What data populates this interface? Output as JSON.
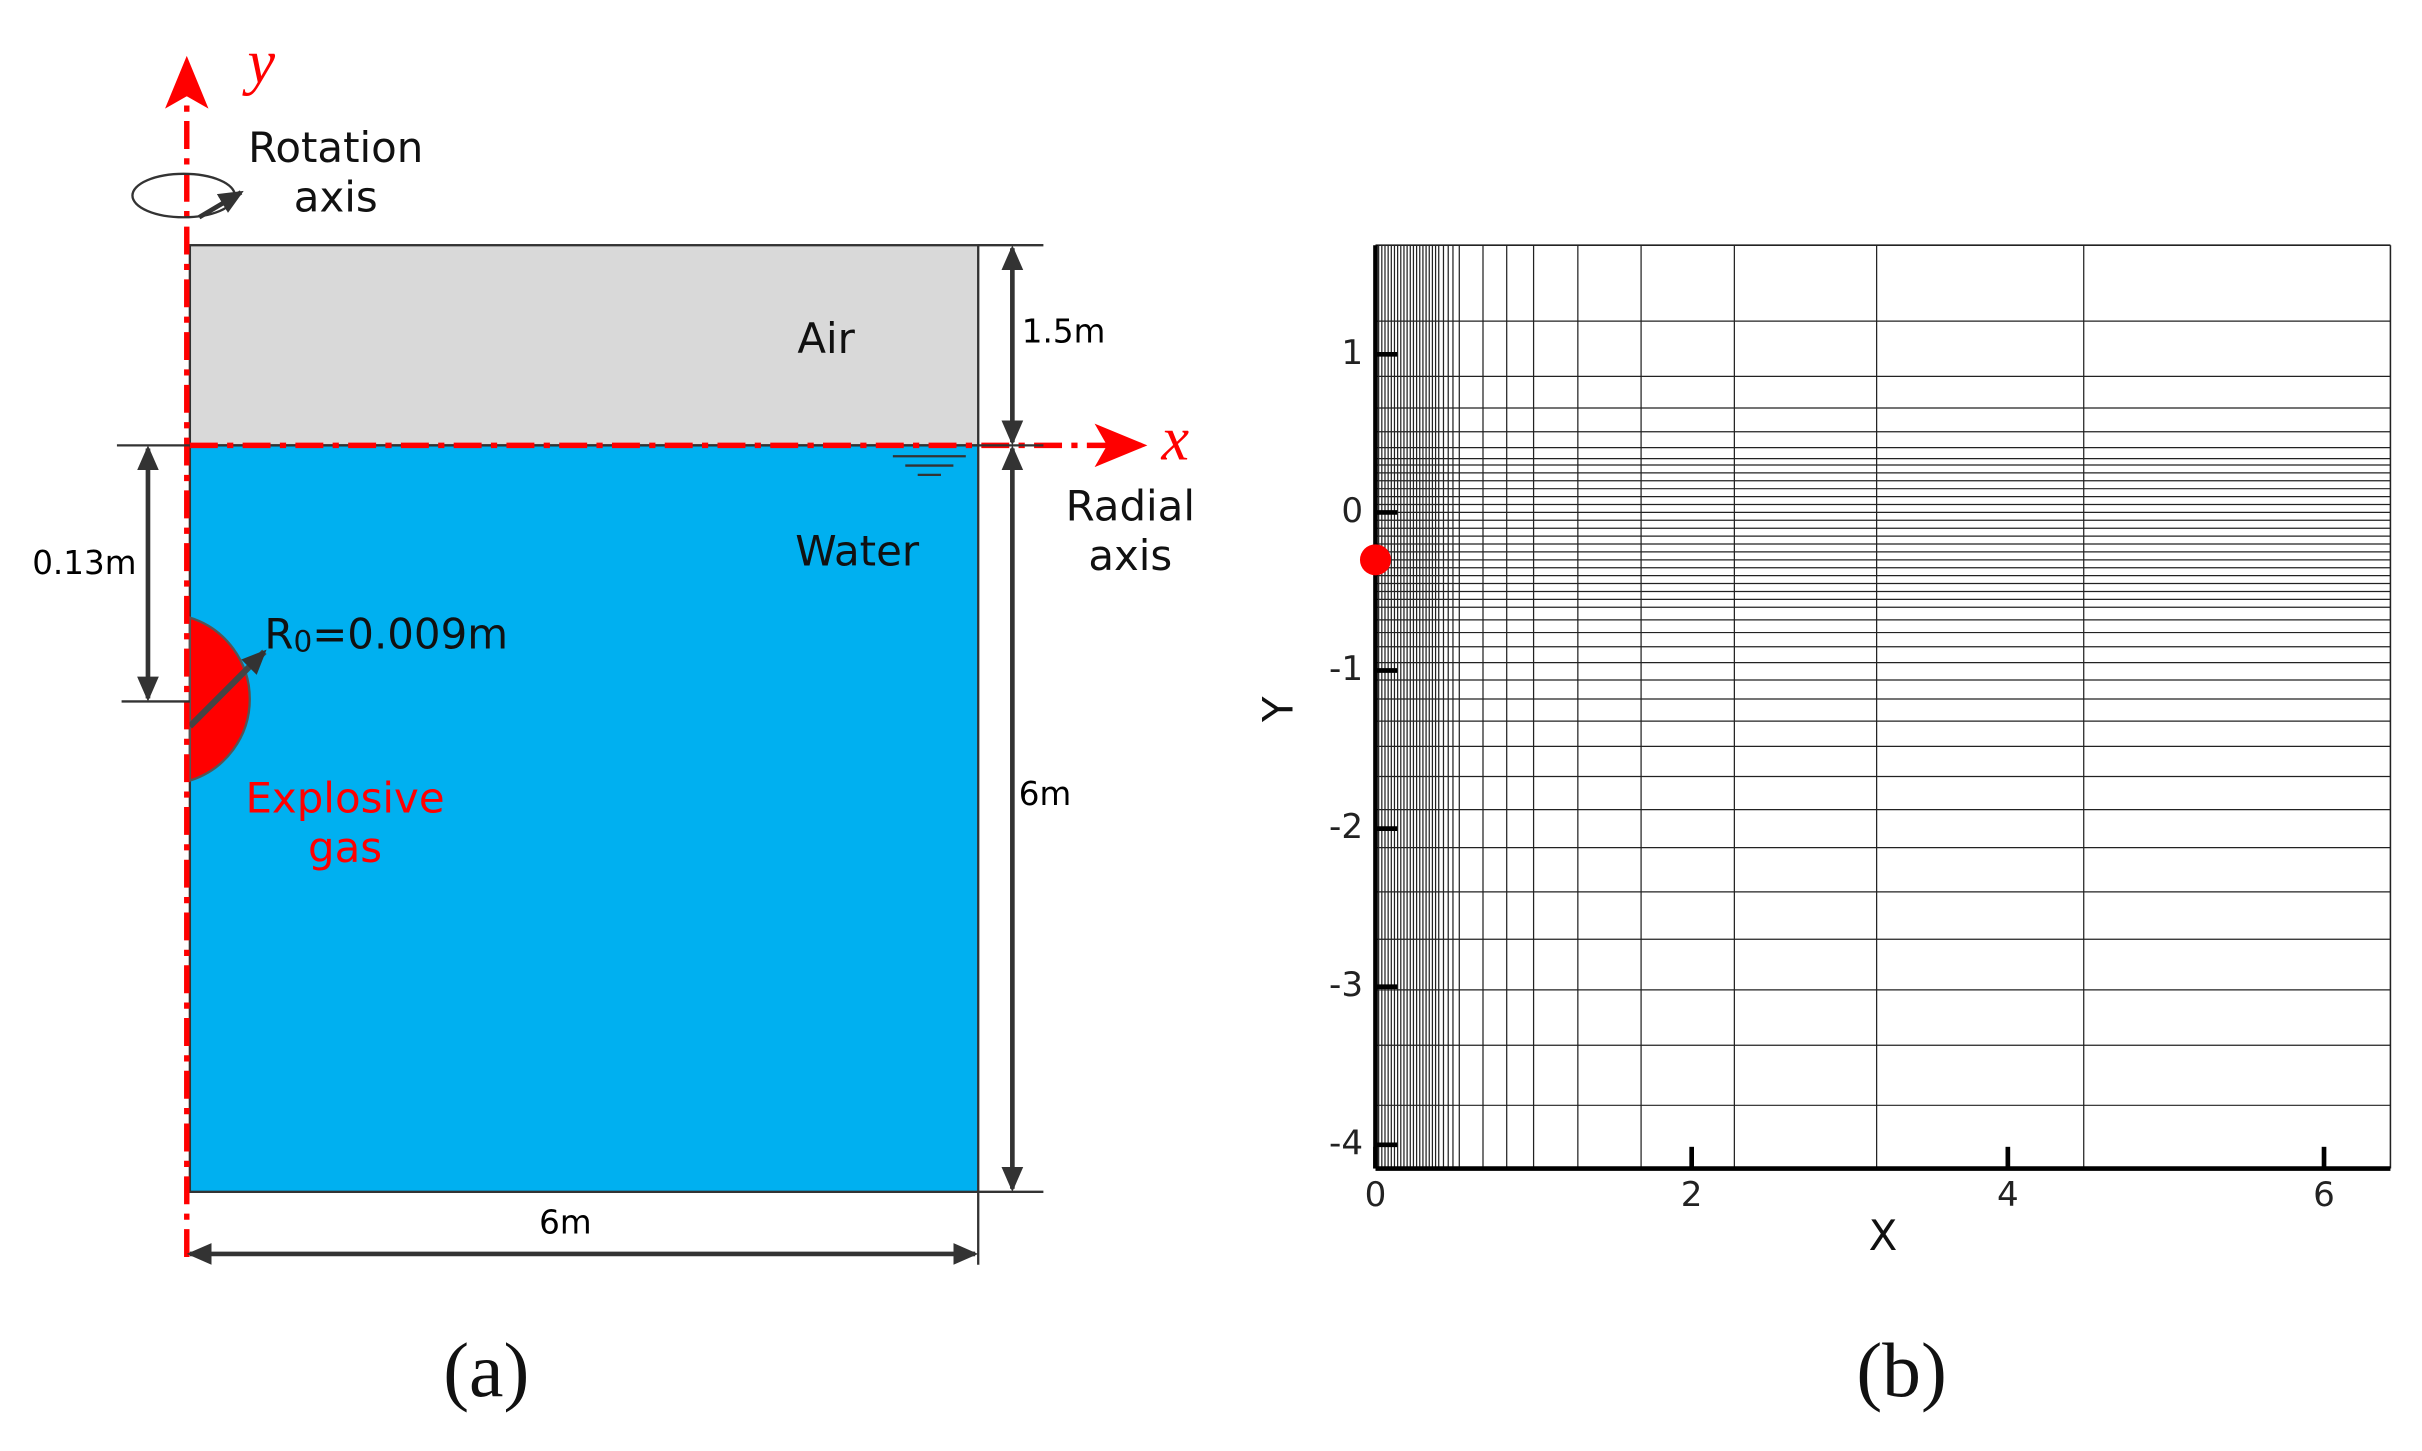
{
  "panel_a": {
    "y_axis_label": "y",
    "x_axis_label": "x",
    "rotation_axis": [
      "Rotation",
      "axis"
    ],
    "air_label": "Air",
    "water_label": "Water",
    "radial_axis": [
      "Radial",
      "axis"
    ],
    "air_height": "1.5m",
    "depth": "0.13m",
    "water_height": "6m",
    "width": "6m",
    "radius": {
      "symbol": "R",
      "subscript": "0",
      "value": "=0.009m"
    },
    "explosive_gas": [
      "Explosive",
      "gas"
    ],
    "caption": "(a)"
  },
  "panel_b": {
    "xlabel": "X",
    "ylabel": "Y",
    "xlim": [
      0,
      6.42
    ],
    "ylim": [
      -4.15,
      1.69
    ],
    "xticks": [
      0,
      2,
      4,
      6
    ],
    "yticks": [
      1,
      0,
      -1,
      -2,
      -3,
      -4
    ],
    "mesh_x": [
      0.02,
      0.04,
      0.06,
      0.08,
      0.1,
      0.12,
      0.14,
      0.16,
      0.18,
      0.2,
      0.22,
      0.24,
      0.26,
      0.28,
      0.3,
      0.32,
      0.34,
      0.36,
      0.38,
      0.4,
      0.43,
      0.46,
      0.49,
      0.53,
      0.68,
      0.83,
      1.0,
      1.28,
      1.68,
      2.27,
      3.17,
      4.48
    ],
    "mesh_y": [
      1.21,
      0.86,
      0.66,
      0.51,
      0.41,
      0.34,
      0.3,
      0.25,
      0.2,
      0.15,
      0.1,
      0.05,
      0,
      -0.05,
      -0.1,
      -0.15,
      -0.2,
      -0.25,
      -0.3,
      -0.35,
      -0.4,
      -0.45,
      -0.5,
      -0.55,
      -0.6,
      -0.68,
      -0.76,
      -0.85,
      -0.95,
      -1.06,
      -1.18,
      -1.32,
      -1.48,
      -1.67,
      -1.88,
      -2.12,
      -2.4,
      -2.7,
      -3.02,
      -3.37,
      -3.75
    ],
    "marker": {
      "x": 0,
      "y": -0.3,
      "color": "#ff0000"
    },
    "caption": "(b)"
  }
}
